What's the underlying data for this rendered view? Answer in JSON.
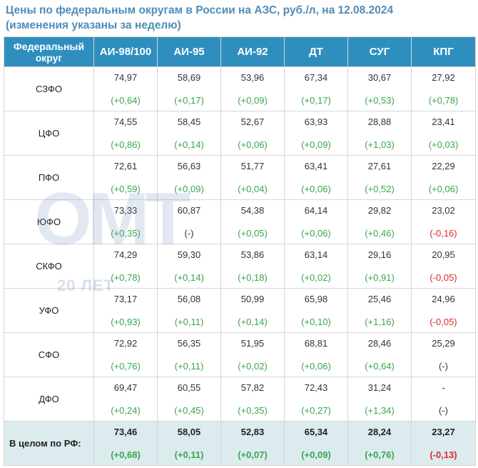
{
  "title": {
    "line1": "Цены по федеральным округам в России на АЗС, руб./л, на 12.08.2024",
    "line2": "(изменения указаны за неделю)"
  },
  "watermark": {
    "logo": "OMT",
    "subtitle": "20 ЛЕТ"
  },
  "colors": {
    "header_bg": "#2e8fbf",
    "title": "#4f8db8",
    "increase": "#3aa64a",
    "decrease": "#d62d2d",
    "total_bg": "#dcebee"
  },
  "table": {
    "headers": [
      "Федеральный округ",
      "АИ-98/100",
      "АИ-95",
      "АИ-92",
      "ДТ",
      "СУГ",
      "КПГ"
    ],
    "rows": [
      {
        "region": "СЗФО",
        "cells": [
          {
            "price": "74,97",
            "change": "(+0,64)"
          },
          {
            "price": "58,69",
            "change": "(+0,17)"
          },
          {
            "price": "53,96",
            "change": "(+0,09)"
          },
          {
            "price": "67,34",
            "change": "(+0,17)"
          },
          {
            "price": "30,67",
            "change": "(+0,53)"
          },
          {
            "price": "27,92",
            "change": "(+0,78)"
          }
        ]
      },
      {
        "region": "ЦФО",
        "cells": [
          {
            "price": "74,55",
            "change": "(+0,86)"
          },
          {
            "price": "58,45",
            "change": "(+0,14)"
          },
          {
            "price": "52,67",
            "change": "(+0,06)"
          },
          {
            "price": "63,93",
            "change": "(+0,09)"
          },
          {
            "price": "28,88",
            "change": "(+1,03)"
          },
          {
            "price": "23,41",
            "change": "(+0,03)"
          }
        ]
      },
      {
        "region": "ПФО",
        "cells": [
          {
            "price": "72,61",
            "change": "(+0,59)"
          },
          {
            "price": "56,63",
            "change": "(+0,09)"
          },
          {
            "price": "51,77",
            "change": "(+0,04)"
          },
          {
            "price": "63,41",
            "change": "(+0,06)"
          },
          {
            "price": "27,61",
            "change": "(+0,52)"
          },
          {
            "price": "22,29",
            "change": "(+0,06)"
          }
        ]
      },
      {
        "region": "ЮФО",
        "cells": [
          {
            "price": "73,33",
            "change": "(+0,35)"
          },
          {
            "price": "60,87",
            "change": "(-)"
          },
          {
            "price": "54,38",
            "change": "(+0,05)"
          },
          {
            "price": "64,14",
            "change": "(+0,06)"
          },
          {
            "price": "29,82",
            "change": "(+0,46)"
          },
          {
            "price": "23,02",
            "change": "(-0,16)"
          }
        ]
      },
      {
        "region": "СКФО",
        "cells": [
          {
            "price": "74,29",
            "change": "(+0,78)"
          },
          {
            "price": "59,30",
            "change": "(+0,14)"
          },
          {
            "price": "53,86",
            "change": "(+0,18)"
          },
          {
            "price": "63,14",
            "change": "(+0,02)"
          },
          {
            "price": "29,16",
            "change": "(+0,91)"
          },
          {
            "price": "20,95",
            "change": "(-0,05)"
          }
        ]
      },
      {
        "region": "УФО",
        "cells": [
          {
            "price": "73,17",
            "change": "(+0,93)"
          },
          {
            "price": "56,08",
            "change": "(+0,11)"
          },
          {
            "price": "50,99",
            "change": "(+0,14)"
          },
          {
            "price": "65,98",
            "change": "(+0,10)"
          },
          {
            "price": "25,46",
            "change": "(+1,16)"
          },
          {
            "price": "24,96",
            "change": "(-0,05)"
          }
        ]
      },
      {
        "region": "СФО",
        "cells": [
          {
            "price": "72,92",
            "change": "(+0,76)"
          },
          {
            "price": "56,35",
            "change": "(+0,11)"
          },
          {
            "price": "51,95",
            "change": "(+0,02)"
          },
          {
            "price": "68,81",
            "change": "(+0,06)"
          },
          {
            "price": "28,46",
            "change": "(+0,64)"
          },
          {
            "price": "25,29",
            "change": "(-)"
          }
        ]
      },
      {
        "region": "ДФО",
        "cells": [
          {
            "price": "69,47",
            "change": "(+0,24)"
          },
          {
            "price": "60,55",
            "change": "(+0,45)"
          },
          {
            "price": "57,82",
            "change": "(+0,35)"
          },
          {
            "price": "72,43",
            "change": "(+0,27)"
          },
          {
            "price": "31,24",
            "change": "(+1,34)"
          },
          {
            "price": "-",
            "change": "(-)"
          }
        ]
      }
    ],
    "total": {
      "region": "В целом по РФ:",
      "cells": [
        {
          "price": "73,46",
          "change": "(+0,68)"
        },
        {
          "price": "58,05",
          "change": "(+0,11)"
        },
        {
          "price": "52,83",
          "change": "(+0,07)"
        },
        {
          "price": "65,34",
          "change": "(+0,09)"
        },
        {
          "price": "28,24",
          "change": "(+0,76)"
        },
        {
          "price": "23,27",
          "change": "(-0,13)"
        }
      ]
    }
  }
}
